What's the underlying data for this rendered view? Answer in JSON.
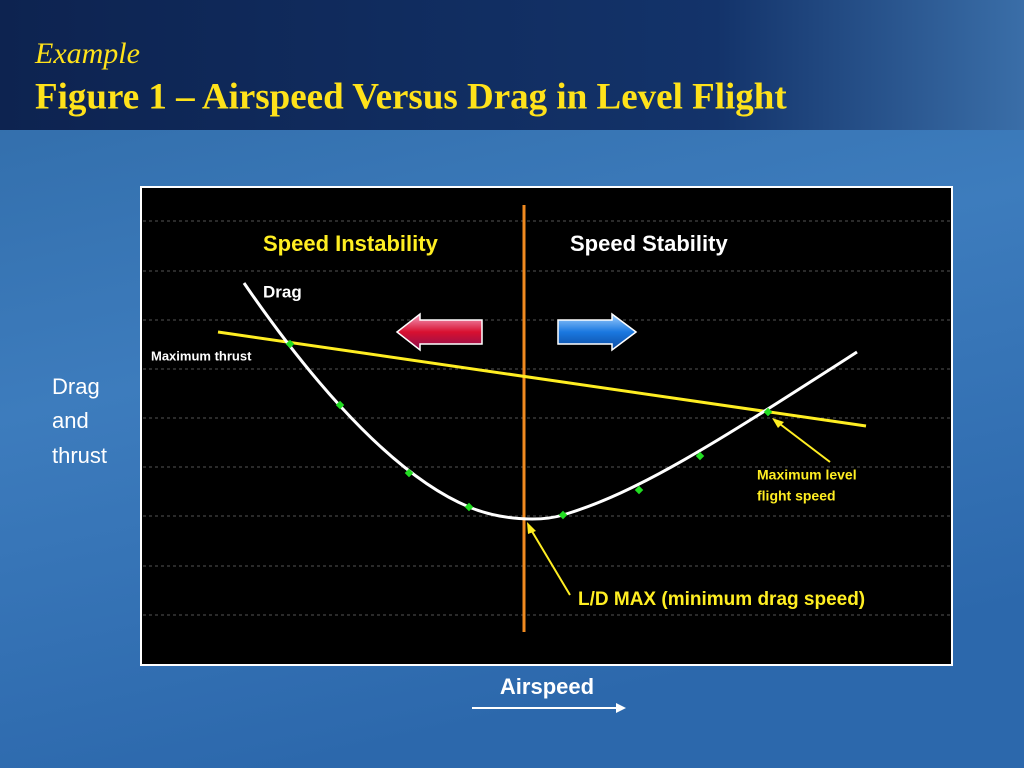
{
  "header": {
    "subtitle": "Example",
    "title": "Figure 1 – Airspeed Versus Drag in Level Flight"
  },
  "diagram": {
    "regions": [
      "Speed Instability",
      "Speed Stability"
    ],
    "drag_label": "Drag",
    "thrust_label": "Maximum thrust",
    "max_speed_label": [
      "Maximum level",
      "flight speed"
    ],
    "ld_max_label": "L/D MAX (minimum drag speed)",
    "y_axis_label": [
      "Drag",
      "and",
      "thrust"
    ],
    "x_axis_label": "Airspeed"
  }
}
